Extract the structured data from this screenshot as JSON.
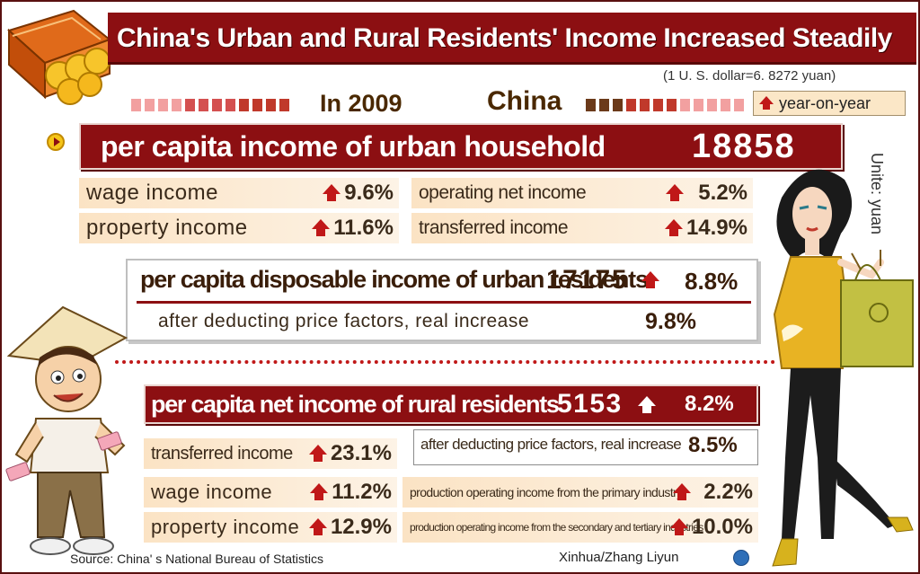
{
  "title": "China's Urban and Rural Residents' Income Increased Steadily",
  "exchange_rate": "(1 U. S.  dollar=6. 8272 yuan)",
  "year_label": "In 2009",
  "country_label": "China",
  "legend_label": "year-on-year",
  "unit": "Unite: yuan",
  "urban": {
    "label": "per capita income of urban household",
    "value": "18858",
    "items": [
      {
        "label": "wage income",
        "pct": "9.6%"
      },
      {
        "label": "operating net income",
        "pct": "5.2%"
      },
      {
        "label": "property income",
        "pct": "11.6%"
      },
      {
        "label": "transferred income",
        "pct": "14.9%"
      }
    ],
    "disposable": {
      "label": "per capita disposable income of urban residents",
      "value": "17175",
      "pct": "8.8%",
      "real_label": "after deducting price factors, real increase",
      "real_pct": "9.8%"
    }
  },
  "rural": {
    "label": "per capita net income of rural residents",
    "value": "5153",
    "pct": "8.2%",
    "real_label": "after deducting price factors, real increase",
    "real_pct": "8.5%",
    "items": [
      {
        "label": "transferred income",
        "pct": "23.1%"
      },
      {
        "label": "wage income",
        "pct": "11.2%"
      },
      {
        "label": "property income",
        "pct": "12.9%"
      },
      {
        "label": "production operating income from the primary industry",
        "pct": "2.2%"
      },
      {
        "label": "production operating income from the secondary and tertiary industries",
        "pct": "10.0%"
      }
    ]
  },
  "source": "Source: China' s National Bureau of Statistics",
  "credit": "Xinhua/Zhang  Liyun",
  "colors": {
    "banner": "#8c0f12",
    "arrow": "#c01818",
    "cream": "#fbe3c4"
  },
  "icons": [
    "wallet-coins-icon",
    "up-arrow-icon",
    "play-bullet-icon",
    "xinhua-logo-icon"
  ]
}
